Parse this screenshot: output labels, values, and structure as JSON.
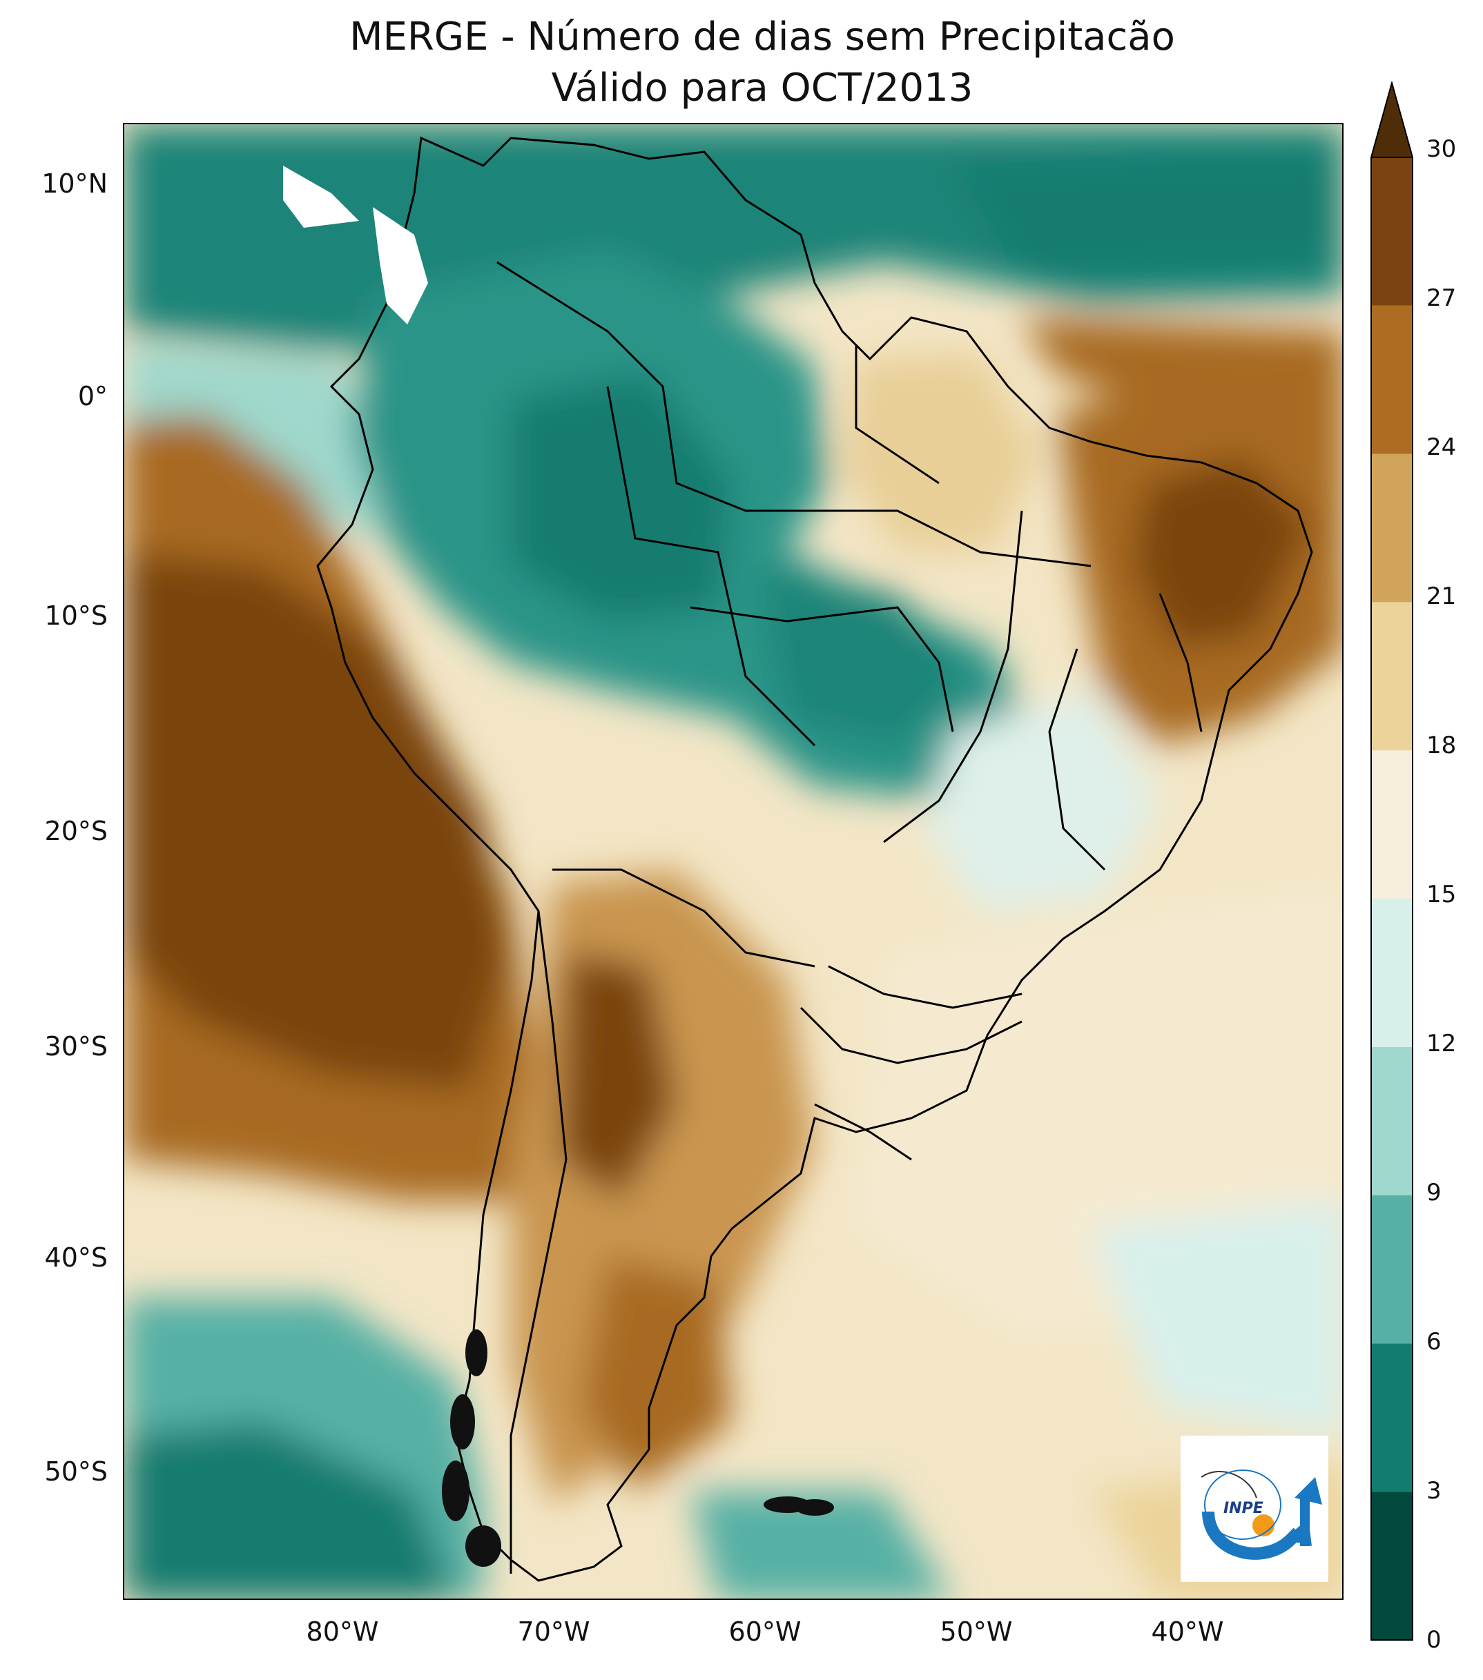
{
  "title": {
    "line1": "MERGE - Número de dias sem Precipitacão",
    "line2": "Válido para OCT/2013"
  },
  "axes": {
    "lat_labels": [
      "10°N",
      "0°",
      "10°S",
      "20°S",
      "30°S",
      "40°S",
      "50°S"
    ],
    "lon_labels": [
      "80°W",
      "70°W",
      "60°W",
      "50°W",
      "40°W"
    ]
  },
  "colorbar": {
    "ticks": [
      "0",
      "3",
      "6",
      "9",
      "12",
      "15",
      "18",
      "21",
      "24",
      "27",
      "30"
    ],
    "colors": [
      "#01493c",
      "#137c70",
      "#56b0a5",
      "#9fd8cc",
      "#d8f0ec",
      "#f6efdc",
      "#ebd39a",
      "#d1a45c",
      "#ac6d23",
      "#7a4410",
      "#4e2d08"
    ],
    "extend": "max"
  },
  "logo": {
    "text": "INPE",
    "icon": "inpe-logo-icon"
  },
  "colors": {
    "ocean_teal": "#137c70",
    "dry_brown": "#7a4410",
    "border": "#000000"
  }
}
